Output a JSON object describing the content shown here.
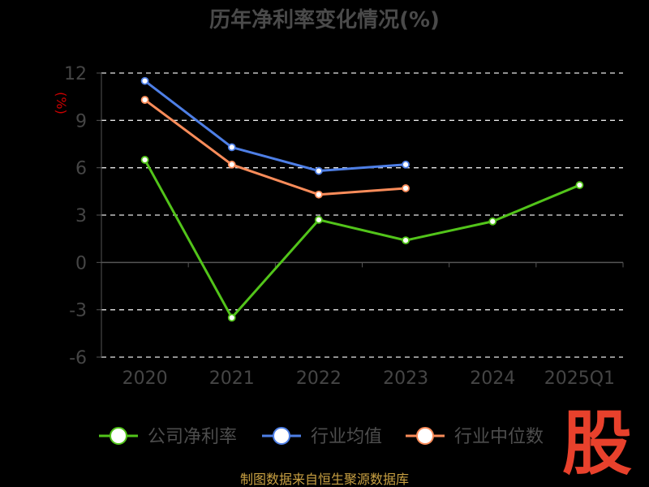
{
  "chart_data": {
    "type": "line",
    "title": "历年净利率变化情况(%)",
    "ylabel": "(%)",
    "xlabel": "",
    "categories": [
      "2020",
      "2021",
      "2022",
      "2023",
      "2024",
      "2025Q1"
    ],
    "ylim": [
      -6,
      12
    ],
    "yticks": [
      "12",
      "9",
      "6",
      "3",
      "0",
      "-3",
      "-6"
    ],
    "grid": true,
    "legend_position": "bottom",
    "series": [
      {
        "name": "公司净利率",
        "color": "#52c41a",
        "values": [
          6.5,
          -3.5,
          2.7,
          1.4,
          2.6,
          4.9
        ]
      },
      {
        "name": "行业均值",
        "color": "#4e7fe6",
        "values": [
          11.5,
          7.3,
          5.8,
          6.2,
          null,
          null
        ]
      },
      {
        "name": "行业中位数",
        "color": "#fa8c5a",
        "values": [
          10.3,
          6.2,
          4.3,
          4.7,
          null,
          null
        ]
      }
    ]
  },
  "source_text": "制图数据来自恒生聚源数据库",
  "watermark_text": "股"
}
